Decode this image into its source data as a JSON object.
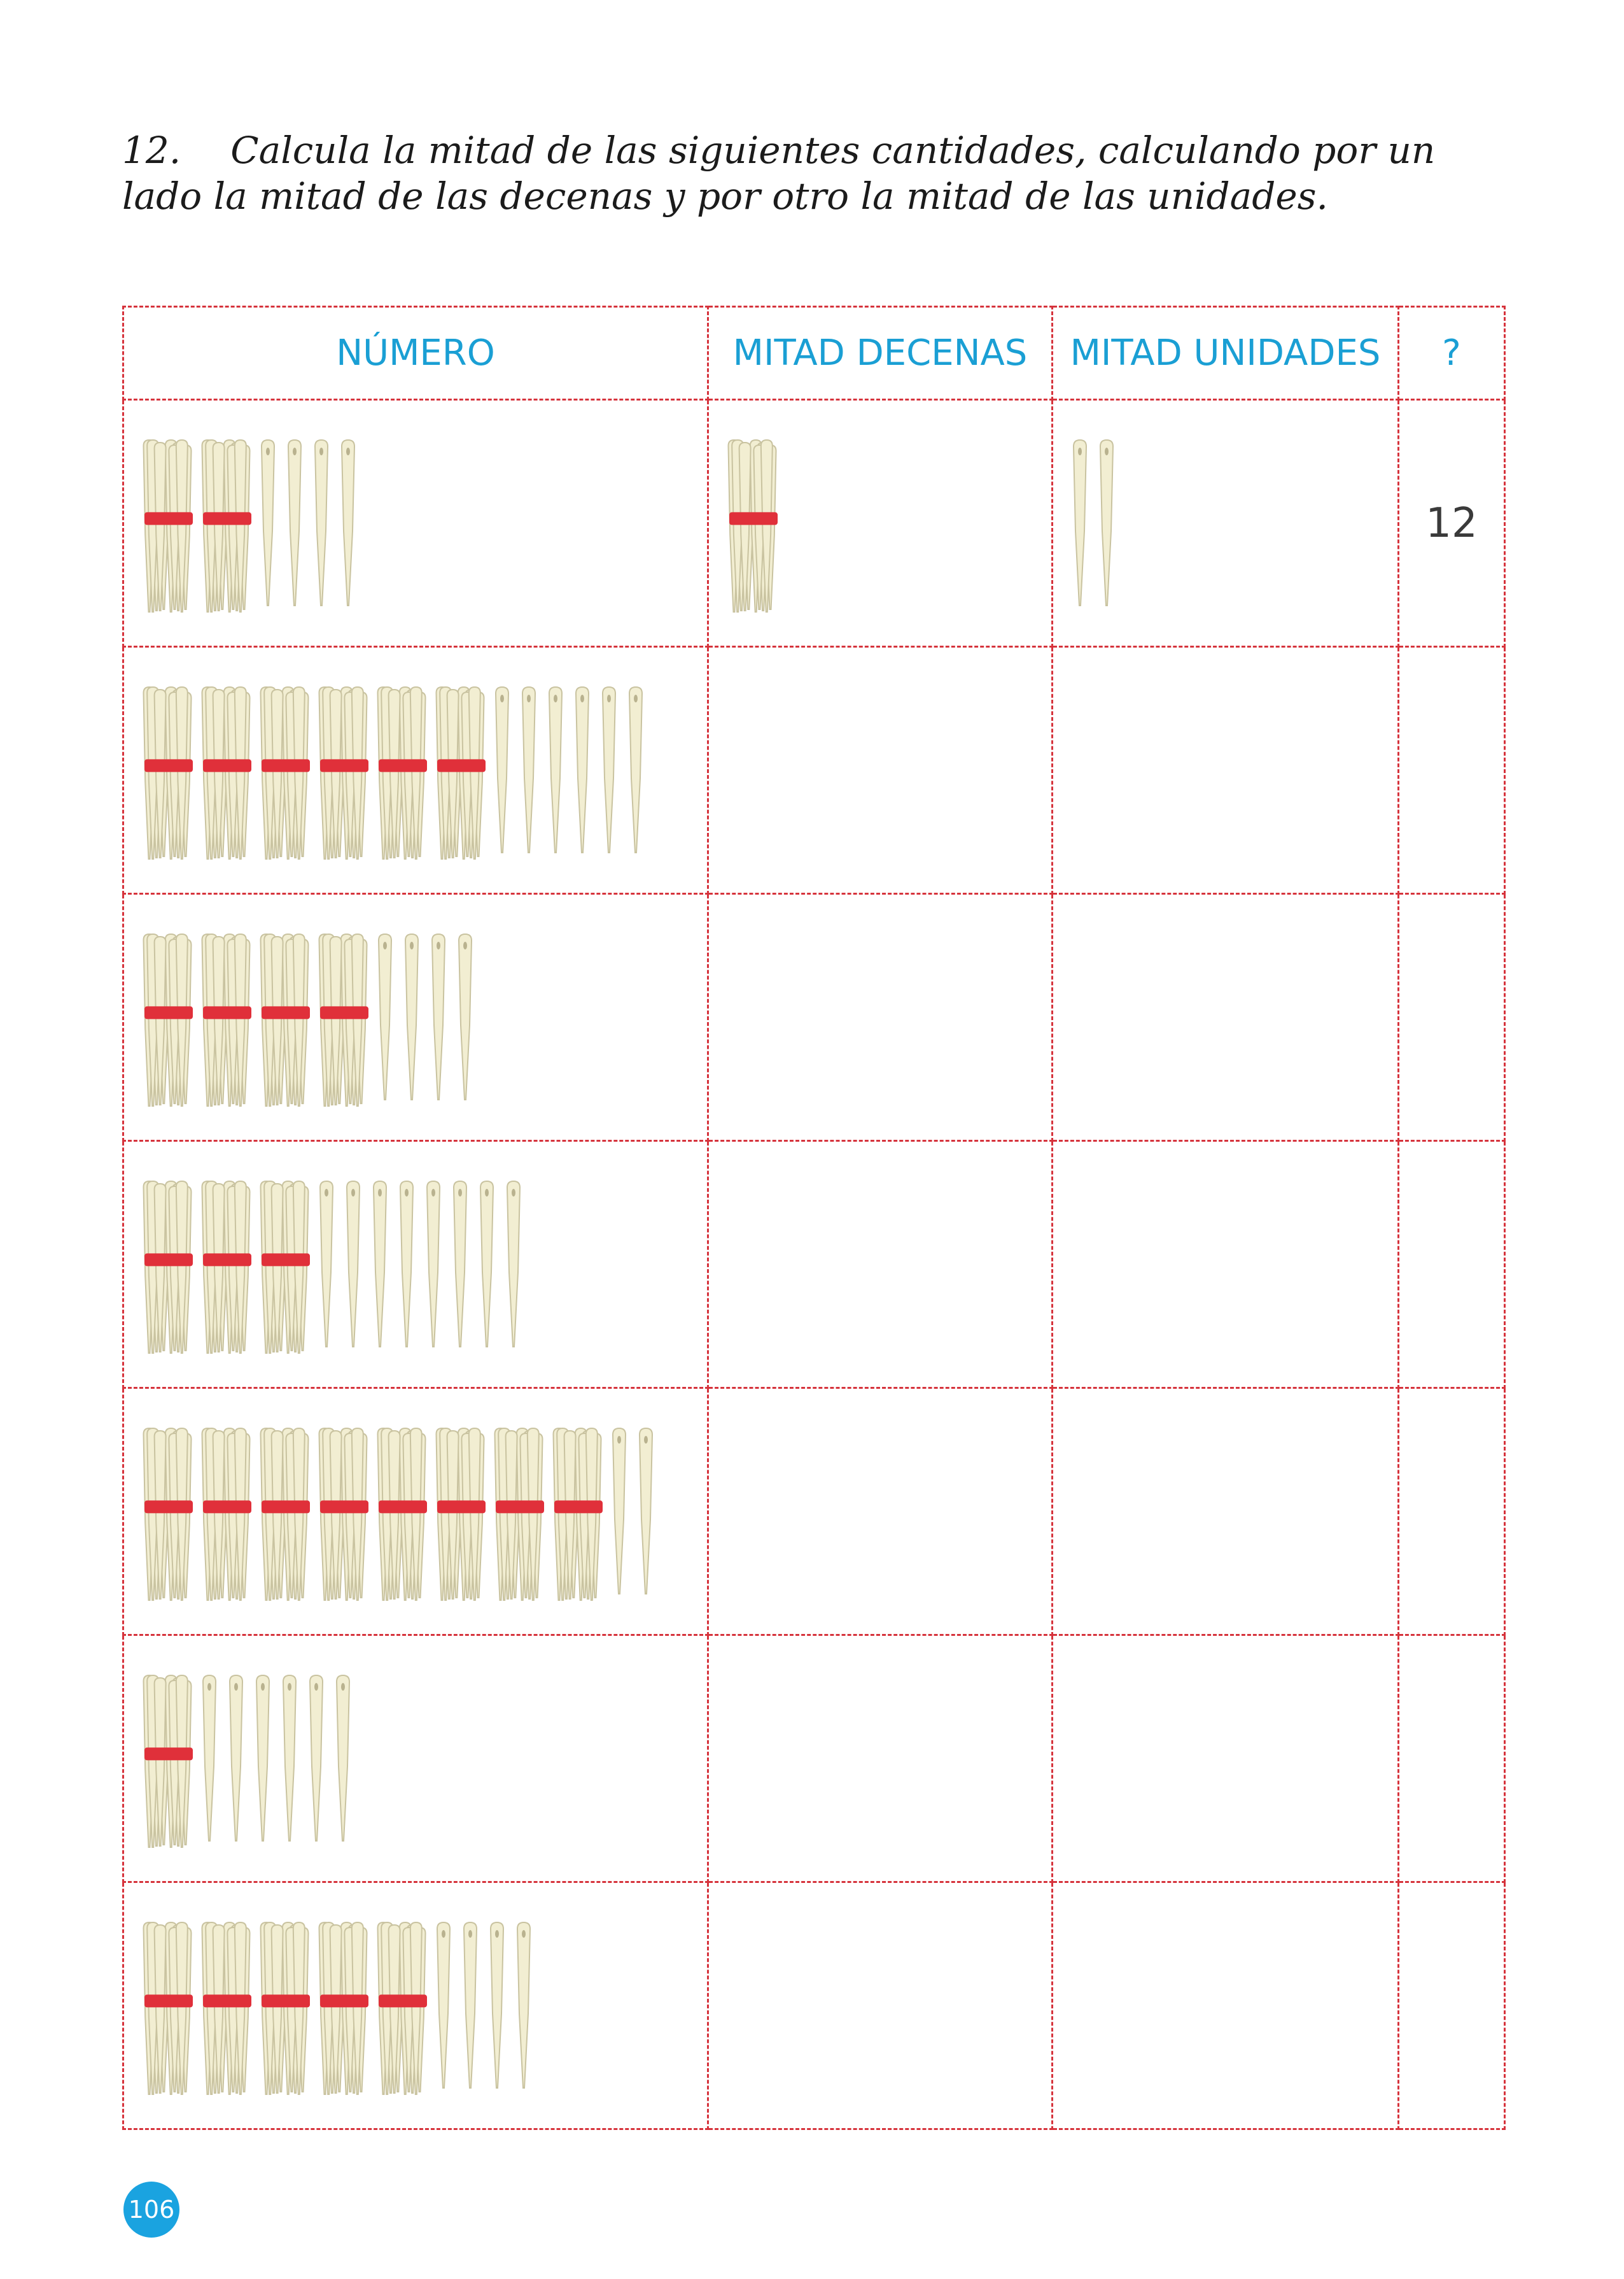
{
  "instruction": {
    "number": "12.",
    "text": "Calcula la mitad de las siguientes cantidades, calculando por un lado la mitad de las decenas y por otro la mitad de las unidades."
  },
  "table": {
    "headers": [
      "NÚMERO",
      "MITAD DECENAS",
      "MITAD UNIDADES",
      "?"
    ],
    "rows": [
      {
        "number": {
          "tens": 2,
          "units": 4
        },
        "half_tens": {
          "tens": 1,
          "units": 0
        },
        "half_units": {
          "tens": 0,
          "units": 2
        },
        "answer": "12"
      },
      {
        "number": {
          "tens": 6,
          "units": 6
        },
        "half_tens": null,
        "half_units": null,
        "answer": ""
      },
      {
        "number": {
          "tens": 4,
          "units": 4
        },
        "half_tens": null,
        "half_units": null,
        "answer": ""
      },
      {
        "number": {
          "tens": 3,
          "units": 8
        },
        "half_tens": null,
        "half_units": null,
        "answer": ""
      },
      {
        "number": {
          "tens": 8,
          "units": 2
        },
        "half_tens": null,
        "half_units": null,
        "answer": ""
      },
      {
        "number": {
          "tens": 1,
          "units": 6
        },
        "half_tens": null,
        "half_units": null,
        "answer": ""
      },
      {
        "number": {
          "tens": 5,
          "units": 4
        },
        "half_tens": null,
        "half_units": null,
        "answer": ""
      }
    ]
  },
  "colors": {
    "border": "#d6333c",
    "header_text": "#1a9fd4",
    "stick": "#f2eed2",
    "stick_outline": "#c9c3a0",
    "band": "#e0303a",
    "badge": "#1aa3e0"
  },
  "icons": {
    "ten_bundle": "bundle-of-ten-sticks-icon",
    "unit_stick": "single-stick-icon"
  },
  "page_number": "106"
}
